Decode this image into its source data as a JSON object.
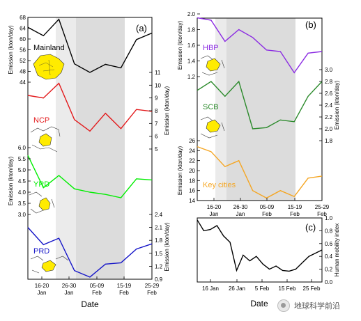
{
  "chart_data": [
    {
      "type": "line",
      "panel_label": "(a)",
      "x_tick_labels": [
        [
          "16-20",
          "Jan"
        ],
        [
          "26-30",
          "Jan"
        ],
        [
          "05-09",
          "Feb"
        ],
        [
          "15-19",
          "Feb"
        ],
        [
          "25-29",
          "Feb"
        ]
      ],
      "x_title": "Date",
      "grid": false,
      "shading": "grey bands over 26-30 Jan (light) and 05-19 Feb (darker)",
      "subplots": [
        {
          "name": "Mainland",
          "color": "#000000",
          "yaxis_side": "left",
          "ylabel": "Emission (kton/day)",
          "ylim": [
            44,
            68
          ],
          "yticks": [
            44,
            48,
            52,
            56,
            60,
            64,
            68
          ],
          "values": [
            64.3,
            61.2,
            67.3,
            50.8,
            47.6,
            50.6,
            49.3,
            59.8,
            62.2
          ]
        },
        {
          "name": "NCP",
          "color": "#e31a1c",
          "yaxis_side": "right",
          "ylabel": "Emission (kton/day)",
          "ylim": [
            5,
            11
          ],
          "yticks": [
            5,
            6,
            7,
            8,
            9,
            10,
            11
          ],
          "values": [
            9.2,
            9.0,
            10.15,
            7.3,
            6.4,
            7.8,
            6.6,
            8.1,
            7.95
          ]
        },
        {
          "name": "YRD",
          "color": "#00ee00",
          "yaxis_side": "left",
          "ylabel": "Emission (kton/day)",
          "ylim": [
            3.0,
            6.0
          ],
          "yticks": [
            3.0,
            3.5,
            4.0,
            4.5,
            5.0,
            5.5,
            6.0
          ],
          "values": [
            5.65,
            4.2,
            4.75,
            4.15,
            4.0,
            3.9,
            3.75,
            4.6,
            4.55
          ]
        },
        {
          "name": "PRD",
          "color": "#1414c8",
          "yaxis_side": "right",
          "ylabel": "Emission (kton/day)",
          "ylim": [
            0.9,
            2.4
          ],
          "yticks": [
            0.9,
            1.2,
            1.5,
            1.8,
            2.1,
            2.4
          ],
          "values": [
            2.1,
            1.7,
            1.85,
            1.1,
            0.95,
            1.25,
            1.28,
            1.6,
            1.72
          ]
        }
      ]
    },
    {
      "type": "line",
      "panel_label": "(b)",
      "x_tick_labels": [
        [
          "16-20",
          "Jan"
        ],
        [
          "26-30",
          "Jan"
        ],
        [
          "05-09",
          "Feb"
        ],
        [
          "15-19",
          "Feb"
        ],
        [
          "25-29",
          "Feb"
        ]
      ],
      "grid": false,
      "shading": "grey bands over 26-30 Jan (light) and 05-19 Feb (darker)",
      "subplots": [
        {
          "name": "HBP",
          "color": "#8b2be2",
          "yaxis_side": "left",
          "ylabel": "Emission (kton/day)",
          "ylim": [
            1.2,
            2.0
          ],
          "yticks": [
            1.2,
            1.4,
            1.6,
            1.8,
            2.0
          ],
          "values": [
            1.95,
            1.92,
            1.65,
            1.8,
            1.7,
            1.54,
            1.52,
            1.25,
            1.5,
            1.52
          ]
        },
        {
          "name": "SCB",
          "color": "#2b8a2b",
          "yaxis_side": "right",
          "ylabel": "Emission (kton/day)",
          "ylim": [
            1.8,
            3.0
          ],
          "yticks": [
            1.8,
            2.0,
            2.2,
            2.4,
            2.6,
            2.8,
            3.0
          ],
          "values": [
            2.65,
            2.8,
            2.55,
            2.8,
            2.0,
            2.02,
            2.15,
            2.12,
            2.55,
            2.8
          ]
        },
        {
          "name": "Key cities",
          "color": "#f5a623",
          "yaxis_side": "left",
          "ylabel": "Emission (kton/day)",
          "ylim": [
            14,
            26
          ],
          "yticks": [
            14,
            16,
            18,
            20,
            22,
            24,
            26
          ],
          "values": [
            24.8,
            23.8,
            20.8,
            22.0,
            16.0,
            14.5,
            16.0,
            14.8,
            18.5,
            18.9
          ]
        }
      ]
    },
    {
      "type": "line",
      "panel_label": "(c)",
      "x_tick_labels": [
        "16 Jan",
        "26 Jan",
        "5 Feb",
        "15 Feb",
        "25 Feb"
      ],
      "x_title": "Date",
      "ylabel": "Human mobility index",
      "yaxis_side": "right",
      "ylim": [
        0.0,
        1.0
      ],
      "yticks": [
        0.0,
        0.2,
        0.4,
        0.6,
        0.8,
        1.0
      ],
      "series": [
        {
          "color": "#000000",
          "values": [
            0.97,
            0.8,
            0.82,
            0.88,
            0.72,
            0.62,
            0.18,
            0.42,
            0.33,
            0.4,
            0.28,
            0.2,
            0.25,
            0.18,
            0.17,
            0.2,
            0.3,
            0.4,
            0.45,
            0.5
          ]
        }
      ]
    }
  ],
  "watermark": {
    "text": "地球科学前沿"
  }
}
